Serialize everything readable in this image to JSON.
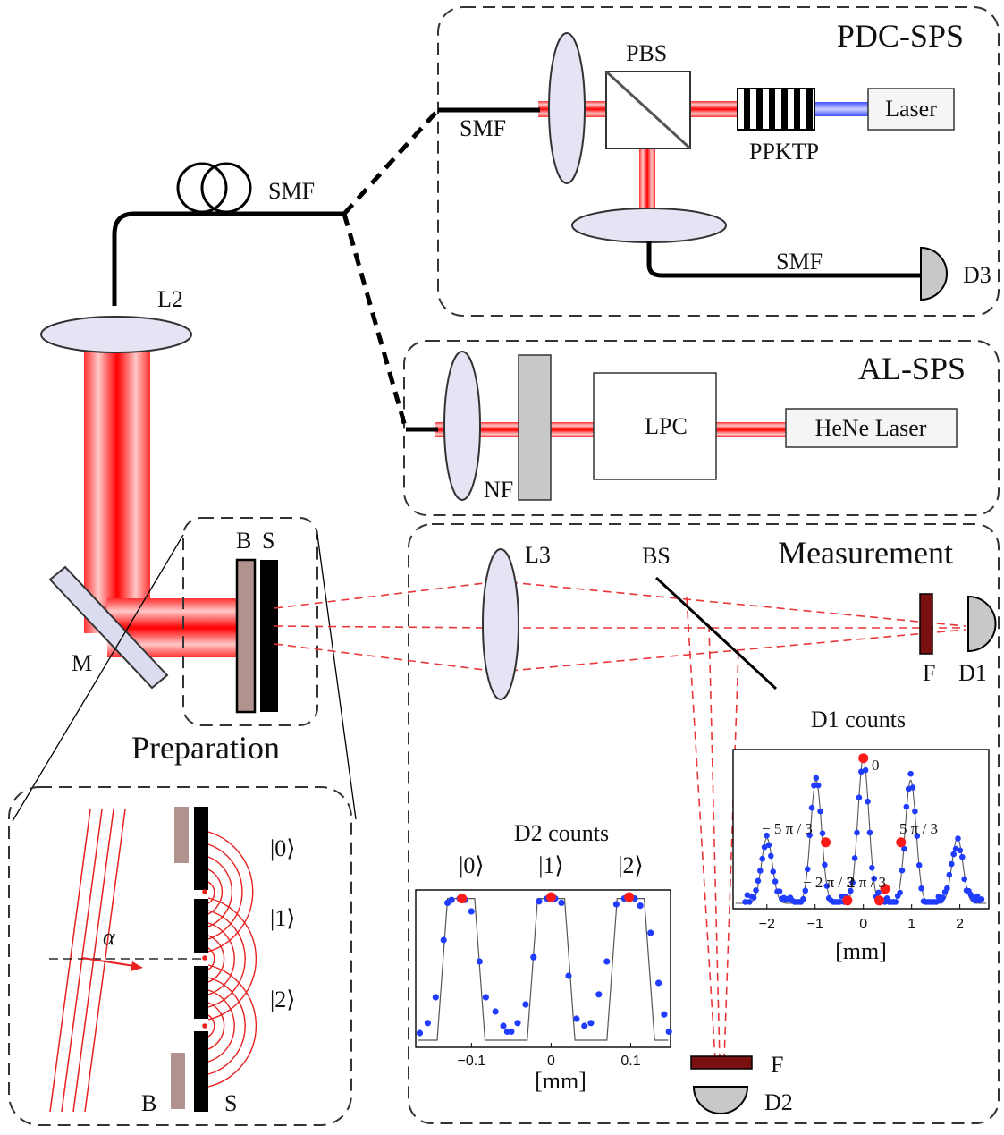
{
  "colors": {
    "beam_red": "#ff1a1a",
    "beam_blue": "#2b3cff",
    "dashed_ray": "#e8363a",
    "lens_fill": "#e4e4f4",
    "blocker_fill": "#b0928e",
    "filter_fill": "#7a1010",
    "detector_fill": "#c8c8c8",
    "nf_fill": "#c8c8c8",
    "data_point": "#1f3cff",
    "data_highlight": "#ff1a1a"
  },
  "sections": {
    "pdc_sps": {
      "title": "PDC-SPS",
      "pbs": "PBS",
      "ppktp": "PPKTP",
      "laser": "Laser",
      "smf_in": "SMF",
      "smf_out": "SMF",
      "detector": "D3"
    },
    "al_sps": {
      "title": "AL-SPS",
      "lpc": "LPC",
      "laser": "HeNe Laser",
      "nf": "NF"
    },
    "fiber": {
      "smf": "SMF",
      "lens": "L2"
    },
    "preparation": {
      "title": "Preparation",
      "mirror": "M",
      "blocker": "B",
      "slits": "S"
    },
    "measurement": {
      "title": "Measurement",
      "lens": "L3",
      "bs": "BS",
      "filter1": "F",
      "det1": "D1",
      "filter2": "F",
      "det2": "D2"
    },
    "inset": {
      "angle": "α",
      "kets": [
        "|0⟩",
        "|1⟩",
        "|2⟩"
      ],
      "blocker": "B",
      "slits": "S"
    }
  },
  "chart_data": [
    {
      "type": "scatter",
      "title": "D2 counts",
      "xlabel": "[mm]",
      "ylabel": "",
      "xlim": [
        -0.17,
        0.15
      ],
      "ylim": [
        0,
        1.05
      ],
      "xticks": [
        -0.1,
        0,
        0.1
      ],
      "xtick_labels": [
        "−0.1",
        "0",
        "0.1"
      ],
      "peak_labels": [
        {
          "x": -0.1,
          "text": "|0⟩"
        },
        {
          "x": 0.0,
          "text": "|1⟩"
        },
        {
          "x": 0.1,
          "text": "|2⟩"
        }
      ],
      "series": [
        {
          "points": [
            [
              -0.165,
              0.05
            ],
            [
              -0.155,
              0.12
            ],
            [
              -0.145,
              0.3
            ],
            [
              -0.135,
              0.7
            ],
            [
              -0.13,
              0.96
            ],
            [
              -0.125,
              0.98
            ],
            [
              -0.115,
              0.99
            ],
            [
              -0.108,
              0.98
            ],
            [
              -0.1,
              0.9
            ],
            [
              -0.09,
              0.55
            ],
            [
              -0.082,
              0.3
            ],
            [
              -0.07,
              0.2
            ],
            [
              -0.06,
              0.1
            ],
            [
              -0.055,
              0.06
            ],
            [
              -0.05,
              0.06
            ],
            [
              -0.042,
              0.12
            ],
            [
              -0.032,
              0.25
            ],
            [
              -0.022,
              0.58
            ],
            [
              -0.015,
              0.97
            ],
            [
              -0.005,
              0.99
            ],
            [
              0.005,
              0.99
            ],
            [
              0.013,
              0.96
            ],
            [
              0.022,
              0.45
            ],
            [
              0.032,
              0.15
            ],
            [
              0.042,
              0.1
            ],
            [
              0.05,
              0.12
            ],
            [
              0.06,
              0.32
            ],
            [
              0.07,
              0.55
            ],
            [
              0.082,
              0.95
            ],
            [
              0.092,
              0.99
            ],
            [
              0.105,
              0.99
            ],
            [
              0.112,
              0.94
            ],
            [
              0.125,
              0.75
            ],
            [
              0.135,
              0.4
            ],
            [
              0.142,
              0.18
            ],
            [
              0.148,
              0.06
            ]
          ]
        },
        {
          "highlight": true,
          "points": [
            [
              -0.112,
              0.99
            ],
            [
              0.0,
              1.0
            ],
            [
              0.098,
              1.0
            ]
          ]
        }
      ],
      "fit_peaks": [
        -0.113,
        0.0,
        0.1
      ],
      "fit_halfwidth": 0.017
    },
    {
      "type": "scatter",
      "title": "D1 counts",
      "xlabel": "[mm]",
      "ylabel": "",
      "xlim": [
        -2.7,
        2.6
      ],
      "ylim": [
        0,
        1.06
      ],
      "xticks": [
        -2,
        -1,
        0,
        1,
        2
      ],
      "xtick_labels": [
        "−2",
        "−1",
        "0",
        "1",
        "2"
      ],
      "phase_labels": [
        {
          "text": "0"
        },
        {
          "text": "− 5 π / 3"
        },
        {
          "text": "5 π / 3"
        },
        {
          "text": "− 2 π / 3"
        },
        {
          "text": "2 π / 3"
        }
      ],
      "envelope": [
        0.45,
        0.85,
        1.0,
        0.85,
        0.45
      ],
      "envelope_centers": [
        -2.0,
        -0.98,
        0.0,
        0.98,
        1.95
      ],
      "peak_width": 0.16,
      "highlight_points": [
        [
          0.0,
          1.0
        ],
        [
          -0.78,
          0.42
        ],
        [
          -0.33,
          0.02
        ],
        [
          0.33,
          0.02
        ],
        [
          0.45,
          0.1
        ],
        [
          0.78,
          0.42
        ]
      ]
    }
  ]
}
